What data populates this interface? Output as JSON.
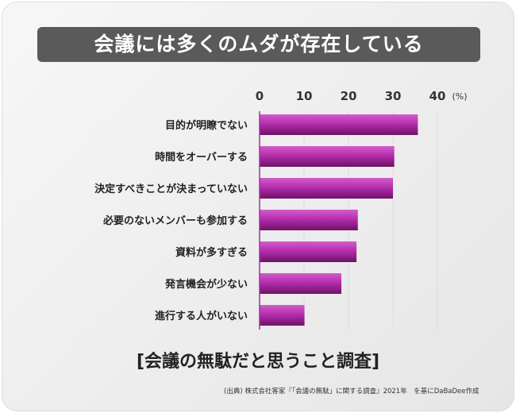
{
  "title": "会議には多くのムダが存在している",
  "subtitle": "[会議の無駄だと思うこと調査]",
  "footer": "(出典) 株式会社客家『「会議の無駄」に関する調査』2021年　を基にDaBaDee作成",
  "chart_data": {
    "type": "bar",
    "orientation": "horizontal",
    "categories": [
      "目的が明瞭でない",
      "時間をオーバーする",
      "決定すべきことが決まっていない",
      "必要のないメンバーも参加する",
      "資料が多すぎる",
      "発言機会が少ない",
      "進行する人がいない"
    ],
    "values": [
      35.6,
      30.3,
      30.0,
      22.1,
      21.8,
      18.4,
      10.1
    ],
    "unit_label": "(%)",
    "xlim": [
      0,
      40
    ],
    "ticks": [
      "0",
      "10",
      "20",
      "30",
      "40"
    ],
    "grid": true,
    "bar_color": "#b02aa8"
  }
}
